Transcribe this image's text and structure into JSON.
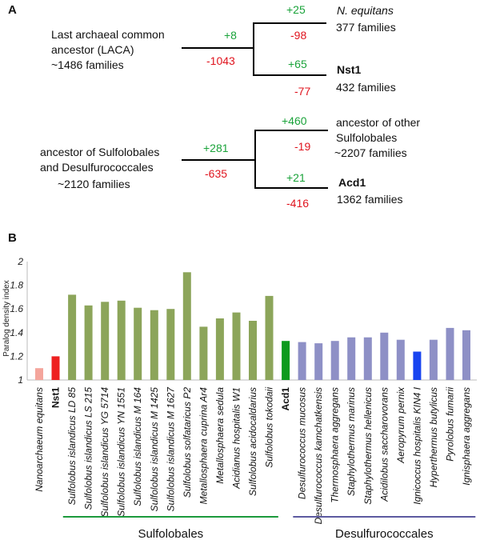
{
  "panel_a": {
    "label": "A",
    "tree1": {
      "root_lines": [
        "Last archaeal common",
        "ancestor (LACA)",
        "~1486 families"
      ],
      "root_gain": "+8",
      "root_loss": "-1043",
      "leaf_top": {
        "name": "N. equitans",
        "families": "377 families",
        "gain": "+25",
        "loss": "-98"
      },
      "leaf_bottom": {
        "name": "Nst1",
        "families": "432 families",
        "gain": "+65",
        "loss": "-77"
      }
    },
    "tree2": {
      "root_lines": [
        "ancestor of Sulfolobales",
        "and Desulfurococcales"
      ],
      "root_families": "~2120 families",
      "root_gain": "+281",
      "root_loss": "-635",
      "leaf_top": {
        "name_lines": [
          "ancestor of other",
          "Sulfolobales"
        ],
        "families": "~2207 families",
        "gain": "+460",
        "loss": "-19"
      },
      "leaf_bottom": {
        "name": "Acd1",
        "families": "1362 families",
        "gain": "+21",
        "loss": "-416"
      }
    }
  },
  "panel_b": {
    "label": "B"
  },
  "chart_data": {
    "type": "bar",
    "title": "",
    "xlabel": "",
    "ylabel": "Paralog density index",
    "ylim": [
      1,
      2
    ],
    "yticks": [
      "1",
      "1.2",
      "1.4",
      "1.6",
      "1.8",
      "2"
    ],
    "categories": [
      "Nanoarchaeum equitans",
      "Nst1",
      "Sulfolobus islandicus LD 85",
      "Sulfolobus islandicus LS 215",
      "Sulfolobus islandicus YG 5714",
      "Sulfolobus islandicus YN 1551",
      "Sulfolobus islandicus M 164",
      "Sulfolobus islandicus M 1425",
      "Sulfolobus islandicus M 1627",
      "Sulfolobus solfataricus P2",
      "Metallosphaera cuprina Ar4",
      "Metallosphaera sedula",
      "Acidianus hospitalis W1",
      "Sulfolobus acidocaldarius",
      "Sulfolobus tokodaii",
      "Acd1",
      "Desulfurococcus mucosus",
      "Desulfurococcus kamchatkensis",
      "Thermosphaera aggregans",
      "Staphylothermus marinus",
      "Staphylothermus hellenicus",
      "Acidilobus saccharovorans",
      "Aeropyrum pernix",
      "Ignicoccus hospitalis KIN4 I",
      "Hyperthermus butylicus",
      "Pyrolobus fumarii",
      "Ignisphaera aggregans"
    ],
    "values": [
      1.1,
      1.2,
      1.72,
      1.63,
      1.66,
      1.67,
      1.61,
      1.59,
      1.6,
      1.91,
      1.45,
      1.52,
      1.57,
      1.5,
      1.71,
      1.33,
      1.32,
      1.31,
      1.33,
      1.36,
      1.36,
      1.4,
      1.34,
      1.24,
      1.34,
      1.44,
      1.42
    ],
    "bold_categories": [
      "Nst1",
      "Acd1"
    ],
    "colors": [
      "#f4a59c",
      "#ee2020",
      "#8ca55a",
      "#8ca55a",
      "#8ca55a",
      "#8ca55a",
      "#8ca55a",
      "#8ca55a",
      "#8ca55a",
      "#8ca55a",
      "#8ca55a",
      "#8ca55a",
      "#8ca55a",
      "#8ca55a",
      "#8ca55a",
      "#0d9a1e",
      "#8e90c6",
      "#8e90c6",
      "#8e90c6",
      "#8e90c6",
      "#8e90c6",
      "#8e90c6",
      "#8e90c6",
      "#1844f0",
      "#8e90c6",
      "#8e90c6",
      "#8e90c6"
    ],
    "groups": [
      {
        "name": "Sulfolobales",
        "color": "#1c9a3c"
      },
      {
        "name": "Desulfurococcales",
        "color": "#5d5aa0"
      }
    ]
  }
}
